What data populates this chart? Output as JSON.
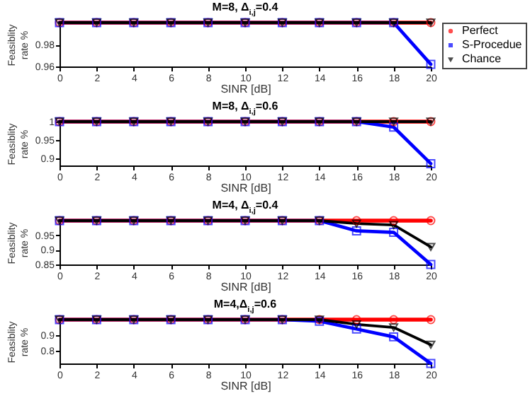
{
  "chart_data": [
    {
      "type": "line",
      "title": "M=8, Δ$_{i,j}$=0.4",
      "xlabel": "SINR [dB]",
      "ylabel": "Feasiblity rate %",
      "x": [
        0,
        2,
        4,
        6,
        8,
        10,
        12,
        14,
        16,
        18,
        20
      ],
      "xlim": [
        0,
        20
      ],
      "xticks": [
        0,
        2,
        4,
        6,
        8,
        10,
        12,
        14,
        16,
        18,
        20
      ],
      "ylim": [
        0.96,
        1
      ],
      "yticks": [
        0.96,
        0.98
      ],
      "legend": "right",
      "series": [
        {
          "name": "Perfect",
          "color": "#ff0000",
          "marker": "circle",
          "values": [
            1,
            1,
            1,
            1,
            1,
            1,
            1,
            1,
            1,
            1,
            1
          ]
        },
        {
          "name": "S-Procedue",
          "color": "#0000ff",
          "marker": "square",
          "values": [
            1,
            1,
            1,
            1,
            1,
            1,
            1,
            1,
            1,
            1,
            0.962
          ]
        },
        {
          "name": "Chance",
          "color": "#000000",
          "marker": "triangle",
          "values": [
            1,
            1,
            1,
            1,
            1,
            1,
            1,
            1,
            1,
            1,
            1
          ]
        }
      ]
    },
    {
      "type": "line",
      "title": "M=8, Δ$_{i,j}$=0.6",
      "xlabel": "SINR [dB]",
      "ylabel": "Feasiblity rate %",
      "x": [
        0,
        2,
        4,
        6,
        8,
        10,
        12,
        14,
        16,
        18,
        20
      ],
      "xlim": [
        0,
        20
      ],
      "xticks": [
        0,
        2,
        4,
        6,
        8,
        10,
        12,
        14,
        16,
        18,
        20
      ],
      "ylim": [
        0.88,
        1
      ],
      "yticks": [
        0.9,
        0.95,
        1
      ],
      "series": [
        {
          "color": "#ff0000",
          "marker": "circle",
          "values": [
            1,
            1,
            1,
            1,
            1,
            1,
            1,
            1,
            1,
            1,
            1
          ]
        },
        {
          "color": "#0000ff",
          "marker": "square",
          "values": [
            1,
            1,
            1,
            1,
            1,
            1,
            1,
            1,
            1,
            0.985,
            0.885
          ]
        },
        {
          "color": "#000000",
          "marker": "triangle",
          "values": [
            1,
            1,
            1,
            1,
            1,
            1,
            1,
            1,
            1,
            1,
            1
          ]
        }
      ]
    },
    {
      "type": "line",
      "title": "M=4, Δ$_{i,j}$=0.4",
      "xlabel": "SINR [dB]",
      "ylabel": "Feasiblity rate %",
      "x": [
        0,
        2,
        4,
        6,
        8,
        10,
        12,
        14,
        16,
        18,
        20
      ],
      "xlim": [
        0,
        20
      ],
      "xticks": [
        0,
        2,
        4,
        6,
        8,
        10,
        12,
        14,
        16,
        18,
        20
      ],
      "ylim": [
        0.85,
        1
      ],
      "yticks": [
        0.85,
        0.9,
        0.95
      ],
      "series": [
        {
          "color": "#ff0000",
          "marker": "circle",
          "values": [
            1,
            1,
            1,
            1,
            1,
            1,
            1,
            1,
            1,
            1,
            1
          ]
        },
        {
          "color": "#0000ff",
          "marker": "square",
          "values": [
            1,
            1,
            1,
            1,
            1,
            1,
            1,
            1,
            0.965,
            0.96,
            0.85
          ]
        },
        {
          "color": "#000000",
          "marker": "triangle",
          "values": [
            1,
            1,
            1,
            1,
            1,
            1,
            1,
            1,
            0.99,
            0.985,
            0.91
          ]
        }
      ]
    },
    {
      "type": "line",
      "title": "M=4,Δ$_{i,j}$=0.6",
      "xlabel": "SINR [dB]",
      "ylabel": "Feasiblity rate %",
      "x": [
        0,
        2,
        4,
        6,
        8,
        10,
        12,
        14,
        16,
        18,
        20
      ],
      "xlim": [
        0,
        20
      ],
      "xticks": [
        0,
        2,
        4,
        6,
        8,
        10,
        12,
        14,
        16,
        18,
        20
      ],
      "ylim": [
        0.72,
        1
      ],
      "yticks": [
        0.8,
        0.9
      ],
      "series": [
        {
          "color": "#ff0000",
          "marker": "circle",
          "values": [
            1,
            1,
            1,
            1,
            1,
            1,
            1,
            1,
            1,
            1,
            1
          ]
        },
        {
          "color": "#0000ff",
          "marker": "square",
          "values": [
            1,
            1,
            1,
            1,
            1,
            1,
            1,
            0.99,
            0.94,
            0.89,
            0.72
          ]
        },
        {
          "color": "#000000",
          "marker": "triangle",
          "values": [
            1,
            1,
            1,
            1,
            1,
            1,
            1,
            1,
            0.97,
            0.95,
            0.84
          ]
        }
      ]
    }
  ]
}
